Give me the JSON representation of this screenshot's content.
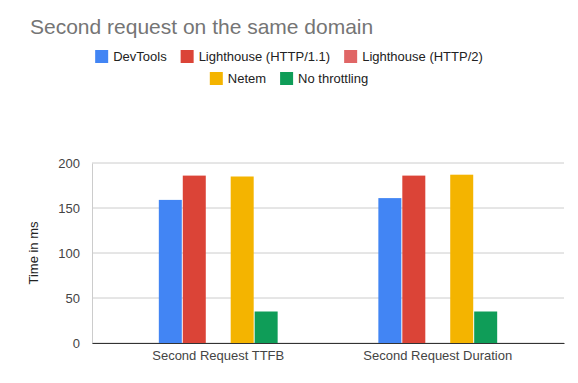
{
  "chart_data": {
    "type": "bar",
    "title": "Second request on the same domain",
    "y_label": "Time in ms",
    "categories": [
      "Second Request TTFB",
      "Second Request Duration"
    ],
    "series": [
      {
        "name": "DevTools",
        "color": "#4285f4",
        "values": [
          159,
          161
        ]
      },
      {
        "name": "Lighthouse (HTTP/1.1)",
        "color": "#db4437",
        "values": [
          186,
          186
        ]
      },
      {
        "name": "Lighthouse (HTTP/2)",
        "color": "#e06666",
        "values": [
          null,
          null
        ]
      },
      {
        "name": "Netem",
        "color": "#f4b400",
        "values": [
          185,
          187
        ]
      },
      {
        "name": "No throttling",
        "color": "#0f9d58",
        "values": [
          35,
          35
        ]
      }
    ],
    "ylim": [
      0,
      200
    ],
    "yticks": [
      0,
      50,
      100,
      150,
      200
    ],
    "grid": true,
    "legend": "top"
  }
}
